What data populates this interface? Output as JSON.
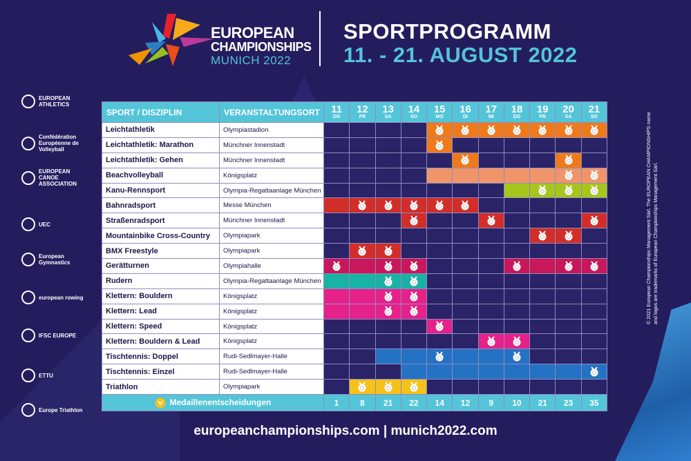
{
  "header": {
    "brand_line1": "EUROPEAN",
    "brand_line2": "CHAMPIONSHIPS",
    "brand_line3": "MUNICH 2022",
    "title": "SPORTPROGRAMM",
    "dates": "11. - 21. AUGUST 2022"
  },
  "colors": {
    "background": "#231d5e",
    "accent_cyan": "#54c4d8",
    "cell_empty": "#2a2367",
    "orange": "#f07a1a",
    "salmon": "#f0956a",
    "lime": "#a7c61c",
    "red": "#d12e2a",
    "crimson": "#c8175a",
    "teal": "#18b3a5",
    "pink": "#e5218a",
    "blue": "#2472c4",
    "yellow": "#f5c21a"
  },
  "federations": [
    {
      "name": "EUROPEAN ATHLETICS",
      "icon": "european-athletics-logo"
    },
    {
      "name": "Confédération Européenne de Volleyball",
      "icon": "cev-logo"
    },
    {
      "name": "EUROPEAN CANOE ASSOCIATION",
      "icon": "eca-logo"
    },
    {
      "name": "UEC",
      "icon": "uec-logo"
    },
    {
      "name": "European Gymnastics",
      "icon": "european-gymnastics-logo"
    },
    {
      "name": "european rowing",
      "icon": "european-rowing-logo"
    },
    {
      "name": "IFSC EUROPE",
      "icon": "ifsc-logo"
    },
    {
      "name": "ETTU",
      "icon": "ettu-logo"
    },
    {
      "name": "Europe Triathlon",
      "icon": "europe-triathlon-logo"
    }
  ],
  "side_text": "© 2021 European Championships Management Sàrl. The EUROPEAN CHAMPIONSHIPS name and logos are trademarks of European Championships Management Sàrl.",
  "table": {
    "col_sport": "SPORT / DISZIPLIN",
    "col_venue": "VERANSTALTUNGSORT",
    "days": [
      {
        "num": "11",
        "dow": "DO"
      },
      {
        "num": "12",
        "dow": "FR"
      },
      {
        "num": "13",
        "dow": "SA"
      },
      {
        "num": "14",
        "dow": "SO"
      },
      {
        "num": "15",
        "dow": "MO"
      },
      {
        "num": "16",
        "dow": "DI"
      },
      {
        "num": "17",
        "dow": "MI"
      },
      {
        "num": "18",
        "dow": "DO"
      },
      {
        "num": "19",
        "dow": "FR"
      },
      {
        "num": "20",
        "dow": "SA"
      },
      {
        "num": "21",
        "dow": "SO"
      }
    ],
    "rows": [
      {
        "sport": "Leichtathletik",
        "venue": "Olympiastadion",
        "color": "orange",
        "active": [
          0,
          0,
          0,
          0,
          1,
          1,
          1,
          1,
          1,
          1,
          1
        ],
        "medal": [
          0,
          0,
          0,
          0,
          1,
          1,
          1,
          1,
          1,
          1,
          1
        ]
      },
      {
        "sport": "Leichtathletik: Marathon",
        "venue": "Münchner Innenstadt",
        "color": "orange",
        "active": [
          0,
          0,
          0,
          0,
          1,
          0,
          0,
          0,
          0,
          0,
          0
        ],
        "medal": [
          0,
          0,
          0,
          0,
          1,
          0,
          0,
          0,
          0,
          0,
          0
        ]
      },
      {
        "sport": "Leichtathletik: Gehen",
        "venue": "Münchner Innenstadt",
        "color": "orange",
        "active": [
          0,
          0,
          0,
          0,
          0,
          1,
          0,
          0,
          0,
          1,
          0
        ],
        "medal": [
          0,
          0,
          0,
          0,
          0,
          1,
          0,
          0,
          0,
          1,
          0
        ]
      },
      {
        "sport": "Beachvolleyball",
        "venue": "Königsplatz",
        "color": "salmon",
        "active": [
          0,
          0,
          0,
          0,
          1,
          1,
          1,
          1,
          1,
          1,
          1
        ],
        "medal": [
          0,
          0,
          0,
          0,
          0,
          0,
          0,
          0,
          0,
          1,
          1
        ]
      },
      {
        "sport": "Kanu-Rennsport",
        "venue": "Olympia-Regattaanlage München",
        "color": "lime",
        "active": [
          0,
          0,
          0,
          0,
          0,
          0,
          0,
          1,
          1,
          1,
          1
        ],
        "medal": [
          0,
          0,
          0,
          0,
          0,
          0,
          0,
          0,
          1,
          1,
          1
        ]
      },
      {
        "sport": "Bahnradsport",
        "venue": "Messe München",
        "color": "red",
        "active": [
          1,
          1,
          1,
          1,
          1,
          1,
          0,
          0,
          0,
          0,
          0
        ],
        "medal": [
          0,
          1,
          1,
          1,
          1,
          1,
          0,
          0,
          0,
          0,
          0
        ]
      },
      {
        "sport": "Straßenradsport",
        "venue": "Münchner Innenstadt",
        "color": "red",
        "active": [
          0,
          0,
          0,
          1,
          0,
          0,
          1,
          0,
          0,
          0,
          1
        ],
        "medal": [
          0,
          0,
          0,
          1,
          0,
          0,
          1,
          0,
          0,
          0,
          1
        ]
      },
      {
        "sport": "Mountainbike Cross-Country",
        "venue": "Olympiapark",
        "color": "red",
        "active": [
          0,
          0,
          0,
          0,
          0,
          0,
          0,
          0,
          1,
          1,
          0
        ],
        "medal": [
          0,
          0,
          0,
          0,
          0,
          0,
          0,
          0,
          1,
          1,
          0
        ]
      },
      {
        "sport": "BMX Freestyle",
        "venue": "Olympiapark",
        "color": "red",
        "active": [
          0,
          1,
          1,
          0,
          0,
          0,
          0,
          0,
          0,
          0,
          0
        ],
        "medal": [
          0,
          1,
          1,
          0,
          0,
          0,
          0,
          0,
          0,
          0,
          0
        ]
      },
      {
        "sport": "Gerätturnen",
        "venue": "Olympiahalle",
        "color": "crimson",
        "active": [
          1,
          1,
          1,
          1,
          0,
          0,
          0,
          1,
          1,
          1,
          1
        ],
        "medal": [
          1,
          0,
          1,
          1,
          0,
          0,
          0,
          1,
          0,
          1,
          1
        ]
      },
      {
        "sport": "Rudern",
        "venue": "Olympia-Regattaanlage München",
        "color": "teal",
        "active": [
          1,
          1,
          1,
          1,
          0,
          0,
          0,
          0,
          0,
          0,
          0
        ],
        "medal": [
          0,
          0,
          1,
          1,
          0,
          0,
          0,
          0,
          0,
          0,
          0
        ]
      },
      {
        "sport": "Klettern: Bouldern",
        "venue": "Königsplatz",
        "color": "pink",
        "active": [
          1,
          1,
          1,
          1,
          0,
          0,
          0,
          0,
          0,
          0,
          0
        ],
        "medal": [
          0,
          0,
          1,
          1,
          0,
          0,
          0,
          0,
          0,
          0,
          0
        ]
      },
      {
        "sport": "Klettern: Lead",
        "venue": "Königsplatz",
        "color": "pink",
        "active": [
          1,
          1,
          1,
          1,
          0,
          0,
          0,
          0,
          0,
          0,
          0
        ],
        "medal": [
          0,
          0,
          1,
          1,
          0,
          0,
          0,
          0,
          0,
          0,
          0
        ]
      },
      {
        "sport": "Klettern: Speed",
        "venue": "Königsplatz",
        "color": "pink",
        "active": [
          0,
          0,
          0,
          0,
          1,
          0,
          0,
          0,
          0,
          0,
          0
        ],
        "medal": [
          0,
          0,
          0,
          0,
          1,
          0,
          0,
          0,
          0,
          0,
          0
        ]
      },
      {
        "sport": "Klettern: Bouldern & Lead",
        "venue": "Königsplatz",
        "color": "pink",
        "active": [
          0,
          0,
          0,
          0,
          0,
          0,
          1,
          1,
          0,
          0,
          0
        ],
        "medal": [
          0,
          0,
          0,
          0,
          0,
          0,
          1,
          1,
          0,
          0,
          0
        ]
      },
      {
        "sport": "Tischtennis: Doppel",
        "venue": "Rudi-Sedlmayer-Halle",
        "color": "blue",
        "active": [
          0,
          0,
          1,
          1,
          1,
          1,
          1,
          1,
          0,
          0,
          0
        ],
        "medal": [
          0,
          0,
          0,
          0,
          1,
          0,
          0,
          1,
          0,
          0,
          0
        ]
      },
      {
        "sport": "Tischtennis: Einzel",
        "venue": "Rudi-Sedlmayer-Halle",
        "color": "blue",
        "active": [
          0,
          0,
          0,
          1,
          1,
          1,
          1,
          1,
          1,
          1,
          1
        ],
        "medal": [
          0,
          0,
          0,
          0,
          0,
          0,
          0,
          0,
          0,
          0,
          1
        ]
      },
      {
        "sport": "Triathlon",
        "venue": "Olympiapark",
        "color": "yellow",
        "active": [
          0,
          1,
          1,
          1,
          0,
          0,
          0,
          0,
          0,
          0,
          0
        ],
        "medal": [
          0,
          1,
          1,
          1,
          0,
          0,
          0,
          0,
          0,
          0,
          0
        ]
      }
    ],
    "footer_label": "Medaillenentscheidungen",
    "medal_counts": [
      "1",
      "8",
      "21",
      "22",
      "14",
      "12",
      "9",
      "10",
      "21",
      "23",
      "35"
    ]
  },
  "footer": {
    "url": "europeanchampionships.com  |  munich2022.com"
  }
}
